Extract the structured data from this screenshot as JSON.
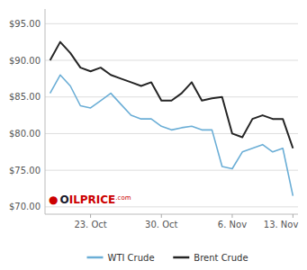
{
  "chart_data": {
    "type": "line",
    "categories": [
      null,
      null,
      null,
      null,
      "23. Oct",
      null,
      null,
      null,
      null,
      null,
      null,
      "30. Oct",
      null,
      null,
      null,
      null,
      null,
      null,
      "6. Nov",
      null,
      null,
      null,
      null,
      null,
      "13. Nov"
    ],
    "series": [
      {
        "name": "WTI Crude",
        "color": "#6baed6",
        "values": [
          85.5,
          88.0,
          86.5,
          83.8,
          83.5,
          84.5,
          85.5,
          84.0,
          82.5,
          82.0,
          82.0,
          81.0,
          80.5,
          80.8,
          81.0,
          80.5,
          80.5,
          75.5,
          75.2,
          77.5,
          78.0,
          78.5,
          77.5,
          78.0,
          71.5
        ]
      },
      {
        "name": "Brent Crude",
        "color": "#252525",
        "values": [
          90.0,
          92.5,
          91.0,
          89.0,
          88.5,
          89.0,
          88.0,
          87.5,
          87.0,
          86.5,
          87.0,
          84.5,
          84.5,
          85.5,
          87.0,
          84.5,
          84.8,
          85.0,
          80.0,
          79.5,
          82.0,
          82.5,
          82.0,
          82.0,
          78.0
        ]
      }
    ],
    "ylim": [
      69.0,
      97.0
    ],
    "yticks": [
      {
        "value": 70.0,
        "label": "$70.00"
      },
      {
        "value": 75.0,
        "label": "$75.00"
      },
      {
        "value": 80.0,
        "label": "$80.00"
      },
      {
        "value": 85.0,
        "label": "$85.00"
      },
      {
        "value": 90.0,
        "label": "$90.00"
      },
      {
        "value": 95.0,
        "label": "$95.00"
      }
    ],
    "grid": true,
    "legend": "bottom",
    "annotations": [
      "●",
      "O",
      "ILPRICE",
      ".com"
    ]
  }
}
